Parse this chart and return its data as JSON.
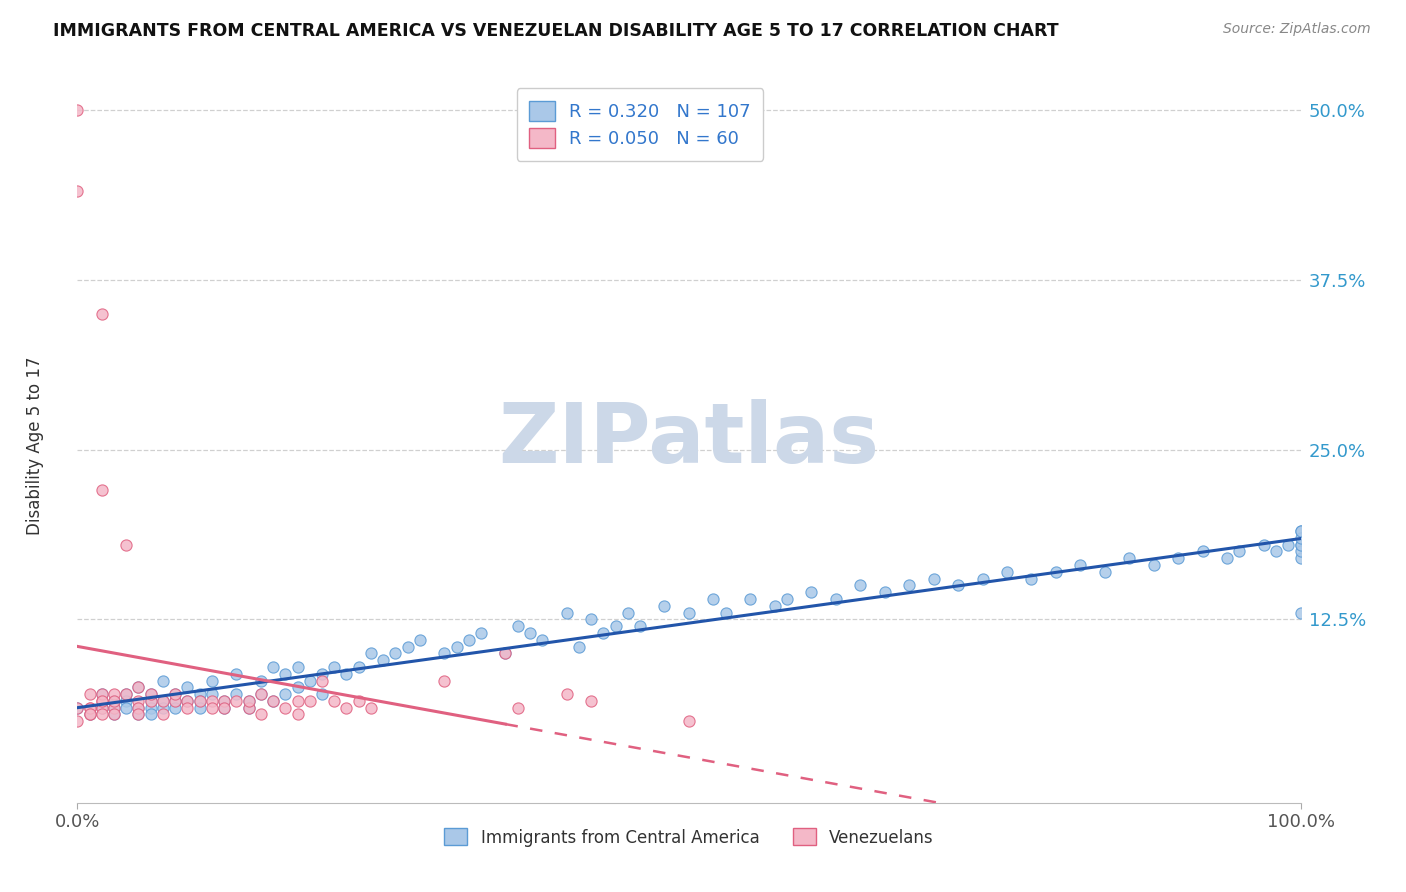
{
  "title": "IMMIGRANTS FROM CENTRAL AMERICA VS VENEZUELAN DISABILITY AGE 5 TO 17 CORRELATION CHART",
  "source": "Source: ZipAtlas.com",
  "ylabel": "Disability Age 5 to 17",
  "background_color": "#ffffff",
  "grid_color": "#d0d0d0",
  "blue_R": 0.32,
  "blue_N": 107,
  "pink_R": 0.05,
  "pink_N": 60,
  "blue_scatter_fc": "#aac8e8",
  "blue_scatter_ec": "#5b9bd5",
  "pink_scatter_fc": "#f4b8c8",
  "pink_scatter_ec": "#e06080",
  "blue_line_color": "#2255aa",
  "pink_line_color": "#e06080",
  "blue_legend_label": "Immigrants from Central America",
  "pink_legend_label": "Venezuelans",
  "xlim": [
    0.0,
    1.0
  ],
  "ylim_min": -0.01,
  "ylim_max": 0.525,
  "yticks": [
    0.125,
    0.25,
    0.375,
    0.5
  ],
  "ytick_labels": [
    "12.5%",
    "25.0%",
    "37.5%",
    "50.0%"
  ],
  "xtick_vals": [
    0.0,
    1.0
  ],
  "xtick_labels": [
    "0.0%",
    "100.0%"
  ],
  "watermark": "ZIPatlas",
  "watermark_color": "#ccd8e8",
  "blue_x": [
    0.0,
    0.01,
    0.02,
    0.02,
    0.03,
    0.03,
    0.03,
    0.04,
    0.04,
    0.04,
    0.05,
    0.05,
    0.05,
    0.06,
    0.06,
    0.06,
    0.06,
    0.07,
    0.07,
    0.07,
    0.08,
    0.08,
    0.08,
    0.09,
    0.09,
    0.1,
    0.1,
    0.1,
    0.11,
    0.11,
    0.12,
    0.12,
    0.13,
    0.13,
    0.14,
    0.14,
    0.15,
    0.15,
    0.16,
    0.16,
    0.17,
    0.17,
    0.18,
    0.18,
    0.19,
    0.2,
    0.2,
    0.21,
    0.22,
    0.23,
    0.24,
    0.25,
    0.26,
    0.27,
    0.28,
    0.3,
    0.31,
    0.32,
    0.33,
    0.35,
    0.36,
    0.37,
    0.38,
    0.4,
    0.41,
    0.42,
    0.43,
    0.44,
    0.45,
    0.46,
    0.48,
    0.5,
    0.52,
    0.53,
    0.55,
    0.57,
    0.58,
    0.6,
    0.62,
    0.64,
    0.66,
    0.68,
    0.7,
    0.72,
    0.74,
    0.76,
    0.78,
    0.8,
    0.82,
    0.84,
    0.86,
    0.88,
    0.9,
    0.92,
    0.94,
    0.95,
    0.97,
    0.98,
    0.99,
    1.0,
    1.0,
    1.0,
    1.0,
    1.0,
    1.0,
    1.0,
    1.0
  ],
  "blue_y": [
    0.06,
    0.055,
    0.07,
    0.06,
    0.065,
    0.06,
    0.055,
    0.07,
    0.065,
    0.06,
    0.075,
    0.06,
    0.055,
    0.07,
    0.065,
    0.06,
    0.055,
    0.08,
    0.065,
    0.06,
    0.07,
    0.065,
    0.06,
    0.075,
    0.065,
    0.07,
    0.065,
    0.06,
    0.08,
    0.07,
    0.065,
    0.06,
    0.085,
    0.07,
    0.065,
    0.06,
    0.08,
    0.07,
    0.09,
    0.065,
    0.085,
    0.07,
    0.09,
    0.075,
    0.08,
    0.085,
    0.07,
    0.09,
    0.085,
    0.09,
    0.1,
    0.095,
    0.1,
    0.105,
    0.11,
    0.1,
    0.105,
    0.11,
    0.115,
    0.1,
    0.12,
    0.115,
    0.11,
    0.13,
    0.105,
    0.125,
    0.115,
    0.12,
    0.13,
    0.12,
    0.135,
    0.13,
    0.14,
    0.13,
    0.14,
    0.135,
    0.14,
    0.145,
    0.14,
    0.15,
    0.145,
    0.15,
    0.155,
    0.15,
    0.155,
    0.16,
    0.155,
    0.16,
    0.165,
    0.16,
    0.17,
    0.165,
    0.17,
    0.175,
    0.17,
    0.175,
    0.18,
    0.175,
    0.18,
    0.17,
    0.18,
    0.19,
    0.175,
    0.18,
    0.185,
    0.19,
    0.13
  ],
  "pink_x": [
    0.0,
    0.0,
    0.0,
    0.0,
    0.01,
    0.01,
    0.01,
    0.01,
    0.01,
    0.02,
    0.02,
    0.02,
    0.02,
    0.02,
    0.02,
    0.02,
    0.03,
    0.03,
    0.03,
    0.03,
    0.04,
    0.04,
    0.05,
    0.05,
    0.05,
    0.05,
    0.06,
    0.06,
    0.07,
    0.07,
    0.08,
    0.08,
    0.09,
    0.09,
    0.1,
    0.11,
    0.11,
    0.12,
    0.12,
    0.13,
    0.14,
    0.14,
    0.15,
    0.15,
    0.16,
    0.17,
    0.18,
    0.18,
    0.19,
    0.2,
    0.21,
    0.22,
    0.23,
    0.24,
    0.3,
    0.35,
    0.36,
    0.4,
    0.42,
    0.5
  ],
  "pink_y": [
    0.5,
    0.44,
    0.05,
    0.06,
    0.06,
    0.055,
    0.06,
    0.055,
    0.07,
    0.065,
    0.35,
    0.22,
    0.07,
    0.06,
    0.065,
    0.055,
    0.06,
    0.07,
    0.065,
    0.055,
    0.18,
    0.07,
    0.065,
    0.075,
    0.06,
    0.055,
    0.065,
    0.07,
    0.065,
    0.055,
    0.065,
    0.07,
    0.065,
    0.06,
    0.065,
    0.065,
    0.06,
    0.065,
    0.06,
    0.065,
    0.06,
    0.065,
    0.07,
    0.055,
    0.065,
    0.06,
    0.065,
    0.055,
    0.065,
    0.08,
    0.065,
    0.06,
    0.065,
    0.06,
    0.08,
    0.1,
    0.06,
    0.07,
    0.065,
    0.05
  ]
}
